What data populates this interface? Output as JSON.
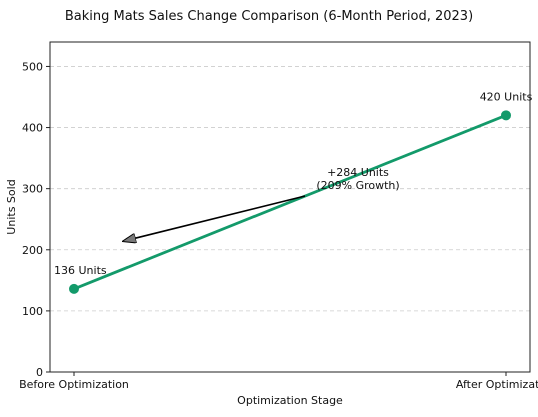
{
  "chart_data": {
    "type": "line",
    "title": "Baking Mats Sales Change Comparison (6-Month Period, 2023)",
    "xlabel": "Optimization Stage",
    "ylabel": "Units Sold",
    "categories": [
      "Before Optimization",
      "After Optimization"
    ],
    "series": [
      {
        "values": [
          136,
          420
        ],
        "color": "#139a6a"
      }
    ],
    "data_labels": [
      "136 Units",
      "420 Units"
    ],
    "annotation": {
      "lines": [
        "+284 Units",
        "(209% Growth)"
      ],
      "arrow": true
    },
    "ylim": [
      0,
      540
    ],
    "yticks": [
      0,
      100,
      200,
      300,
      400,
      500
    ],
    "grid": "horizontal dashed",
    "legend": "none"
  }
}
